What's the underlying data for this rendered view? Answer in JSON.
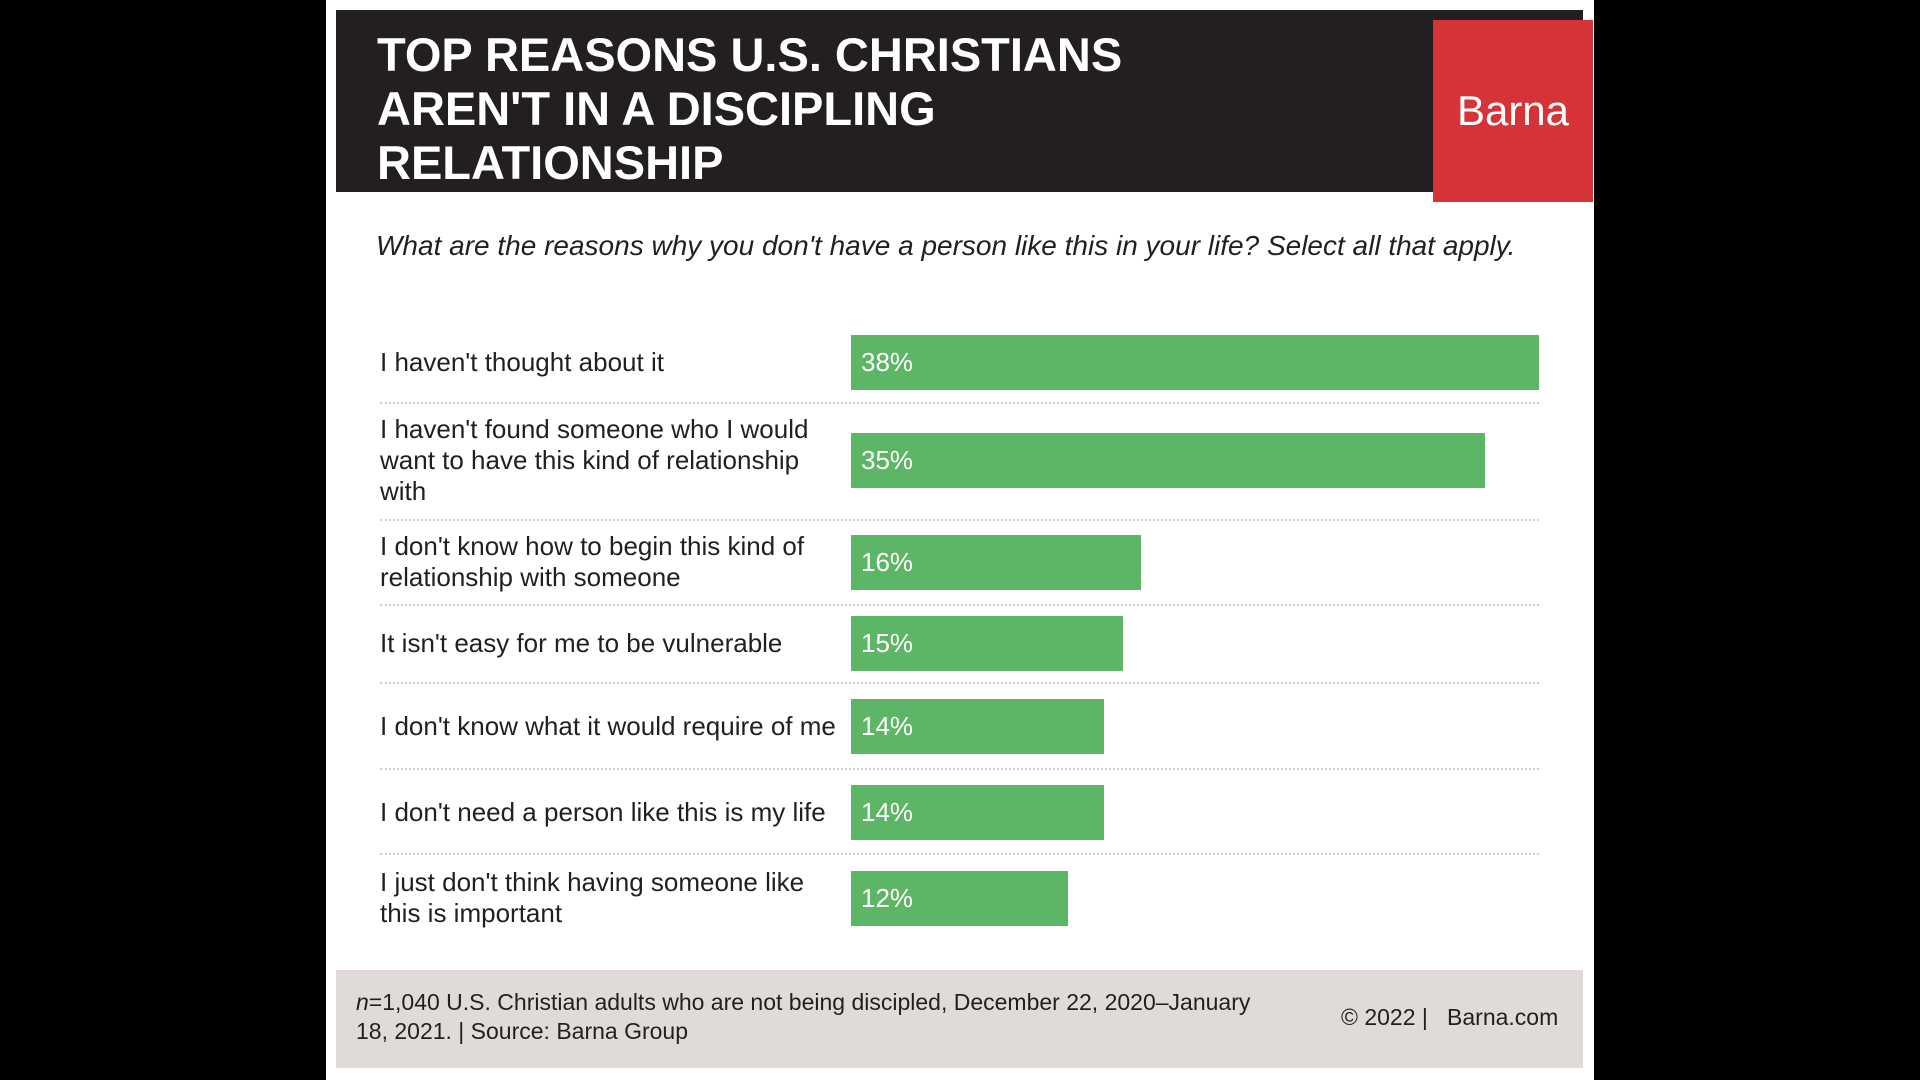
{
  "chart_data": {
    "type": "bar",
    "orientation": "horizontal",
    "brand": "Barna",
    "title": "TOP REASONS U.S. CHRISTIANS AREN'T IN A DISCIPLING RELATIONSHIP",
    "subtitle": "What are the reasons why you don't have a person like this in your life? Select all that apply.",
    "categories": [
      "I haven't thought about it",
      "I haven't found someone who I would want to have this kind of relationship with",
      "I don't know how to begin this kind of relationship with someone",
      "It isn't easy for me to be vulnerable",
      "I don't know what it would require of me",
      "I don't need a person like this is my life",
      "I just don't think having someone like this is important"
    ],
    "values": [
      38,
      35,
      16,
      15,
      14,
      14,
      12
    ],
    "value_labels": [
      "38%",
      "35%",
      "16%",
      "15%",
      "14%",
      "14%",
      "12%"
    ],
    "color": "#5db566",
    "xlim": [
      0,
      38
    ],
    "note_variable": "n",
    "note": "=1,040 U.S. Christian adults who are not being discipled, December 22, 2020–January 18, 2021. | Source: Barna Group",
    "copyright": "© 2022 |",
    "website": "Barna.com"
  }
}
